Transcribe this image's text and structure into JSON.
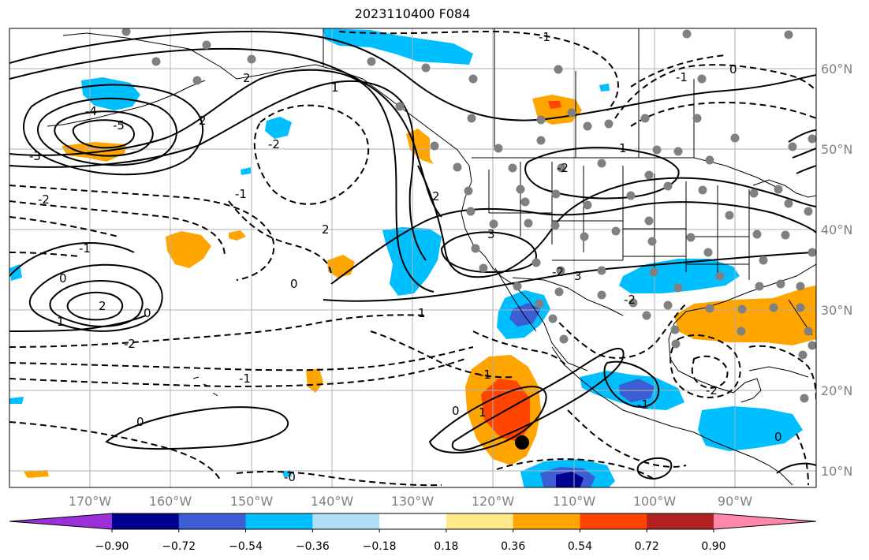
{
  "title": "2023110400 F084",
  "x_ticks": [
    "170°W",
    "160°W",
    "150°W",
    "140°W",
    "130°W",
    "120°W",
    "110°W",
    "100°W",
    "90°W"
  ],
  "y_ticks": [
    "60°N",
    "50°N",
    "40°N",
    "30°N",
    "20°N",
    "10°N"
  ],
  "colorbar": {
    "colors": [
      "#9b30d9",
      "#000090",
      "#3c5dd4",
      "#00bfff",
      "#b0e0f8",
      "#ffffff",
      "#ffe98a",
      "#ffa500",
      "#ff4500",
      "#b22222",
      "#ff88aa"
    ],
    "tick_labels": [
      "−0.90",
      "−0.72",
      "−0.54",
      "−0.36",
      "−0.18",
      "0.18",
      "0.36",
      "0.54",
      "0.72",
      "0.90"
    ]
  },
  "contour_labels": [
    "-1",
    "-1",
    "0",
    "-4",
    "-5",
    "-3",
    "-2",
    "1",
    "2",
    "-2",
    "2",
    "1",
    "-1",
    "2",
    "-1",
    "0",
    "3",
    "2",
    "1",
    "2",
    "-2",
    "-2",
    "0",
    "0",
    "-2",
    "-1",
    "0",
    "-1",
    "3",
    "-2",
    "1",
    "1",
    "0",
    "-2",
    "-0",
    "-1",
    "0"
  ],
  "station_marker_color": "#808080",
  "storm_marker_color": "#000000"
}
